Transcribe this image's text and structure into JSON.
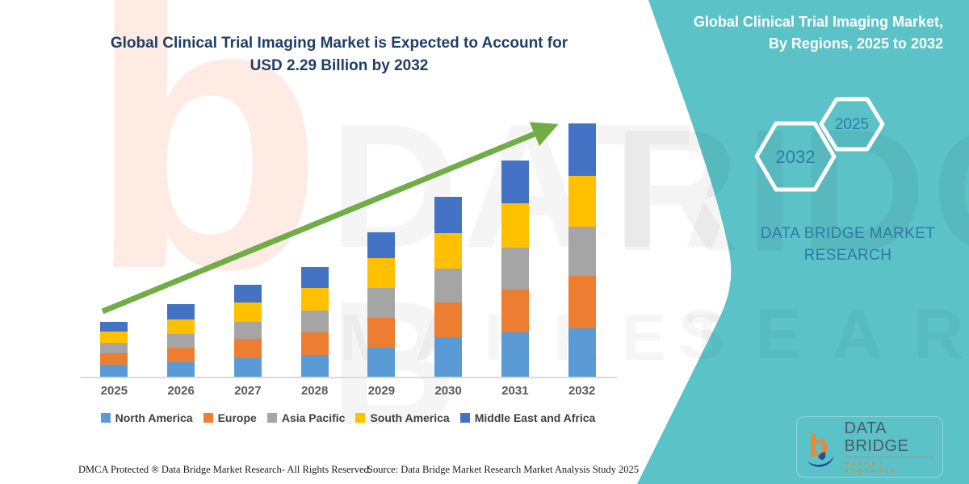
{
  "header": {
    "title_line1": "Global Clinical Trial Imaging Market is Expected to Account for",
    "title_line2": "USD 2.29 Billion by 2032"
  },
  "side_panel": {
    "heading_line1": "Global Clinical Trial Imaging Market,",
    "heading_line2": "By Regions, 2025 to 2032",
    "hex_left_year": "2032",
    "hex_right_year": "2025",
    "brand_line1": "DATA BRIDGE MARKET",
    "brand_line2": "RESEARCH",
    "panel_color": "#5BC2C7",
    "panel_text_color": "#2E7BA6"
  },
  "logo": {
    "glyph": "data-bridge-b-mark",
    "name_line": "DATA BRIDGE",
    "sub_line": "MARKET RESEARCH"
  },
  "footer": {
    "left": "DMCA Protected ® Data Bridge Market Research-  All Rights Reserved.",
    "right": "Source: Data Bridge Market Research  Market Analysis Study 2025"
  },
  "chart_data": {
    "type": "bar",
    "stacked": true,
    "title": "Global Clinical Trial Imaging Market, By Regions, 2025 to 2032",
    "unit": "USD Billion",
    "categories": [
      "2025",
      "2026",
      "2027",
      "2028",
      "2029",
      "2030",
      "2031",
      "2032"
    ],
    "series": [
      {
        "name": "North America",
        "color": "#5B9BD5",
        "values": [
          0.11,
          0.13,
          0.17,
          0.2,
          0.26,
          0.36,
          0.4,
          0.44
        ]
      },
      {
        "name": "Europe",
        "color": "#ED7D31",
        "values": [
          0.1,
          0.13,
          0.17,
          0.2,
          0.27,
          0.31,
          0.39,
          0.47
        ]
      },
      {
        "name": "Asia Pacific",
        "color": "#A5A5A5",
        "values": [
          0.1,
          0.13,
          0.16,
          0.2,
          0.27,
          0.31,
          0.38,
          0.45
        ]
      },
      {
        "name": "South America",
        "color": "#FFC000",
        "values": [
          0.1,
          0.13,
          0.17,
          0.2,
          0.27,
          0.32,
          0.4,
          0.46
        ]
      },
      {
        "name": "Middle East and Africa",
        "color": "#4472C4",
        "values": [
          0.09,
          0.14,
          0.16,
          0.19,
          0.24,
          0.33,
          0.39,
          0.47
        ]
      }
    ],
    "totals": [
      0.5,
      0.66,
      0.83,
      0.99,
      1.31,
      1.63,
      1.96,
      2.29
    ],
    "ylim": [
      0,
      2.4
    ],
    "gridlines": false,
    "legend_position": "bottom",
    "annotations": [
      "Green upward trend arrow from 2025 bar to 2032 bar"
    ],
    "trend_arrow_color": "#70AD47",
    "pixels_per_unit": 137
  }
}
